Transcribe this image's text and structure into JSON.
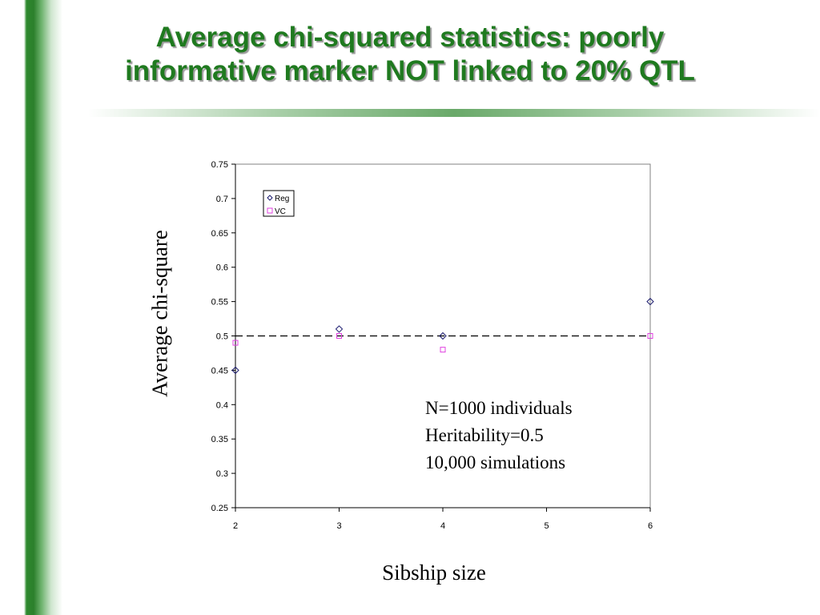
{
  "slide": {
    "title_line1": "Average chi-squared statistics: poorly",
    "title_line2": "informative marker NOT linked to 20% QTL",
    "title_color": "#1f7a1f",
    "accent_color": "#2b7f2b"
  },
  "annotation": {
    "lines": [
      "N=1000 individuals",
      "Heritability=0.5",
      "10,000 simulations"
    ]
  },
  "chart_data": {
    "type": "scatter",
    "xlabel": "Sibship size",
    "ylabel": "Average chi-square",
    "xlim": [
      2,
      6
    ],
    "ylim": [
      0.25,
      0.75
    ],
    "x_ticks": [
      "2",
      "3",
      "4",
      "5",
      "6"
    ],
    "y_ticks": [
      "0.25",
      "0.3",
      "0.35",
      "0.4",
      "0.45",
      "0.5",
      "0.55",
      "0.6",
      "0.65",
      "0.7",
      "0.75"
    ],
    "grid": false,
    "legend_position": "top-left",
    "reference_line": {
      "y": 0.5,
      "style": "dashed"
    },
    "series": [
      {
        "name": "Reg",
        "marker": "diamond",
        "color": "#1a1a6e",
        "x": [
          2,
          3,
          4,
          6
        ],
        "values": [
          0.45,
          0.51,
          0.5,
          0.55
        ]
      },
      {
        "name": "VC",
        "marker": "square",
        "color": "#e040e0",
        "x": [
          2,
          3,
          4,
          6
        ],
        "values": [
          0.49,
          0.5,
          0.48,
          0.5
        ]
      }
    ]
  }
}
